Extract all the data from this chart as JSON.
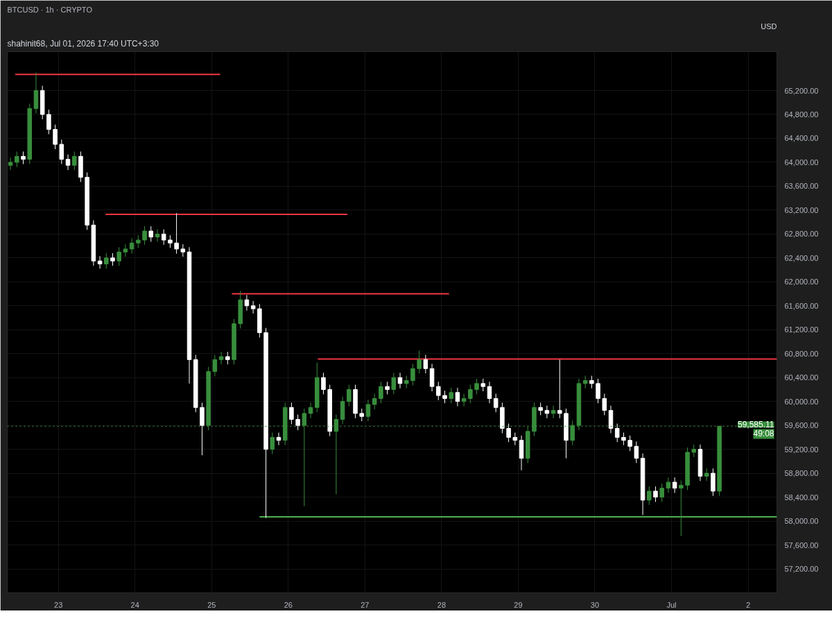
{
  "chart_data": {
    "type": "candlestick",
    "title": "BTCUSD · 1h · CRYPTO",
    "annotations": [
      "shahinit68, Jul 01, 2026 17:40 UTC+3:30",
      "USD",
      {
        "text": "49:08",
        "y": 59585.11
      }
    ],
    "x": [
      "2026-06-22T09:00",
      "2026-06-22T11:00",
      "2026-06-22T13:00",
      "2026-06-22T15:00",
      "2026-06-22T17:00",
      "2026-06-22T19:00",
      "2026-06-22T21:00",
      "2026-06-22T23:00",
      "2026-06-23T01:00",
      "2026-06-23T03:00",
      "2026-06-23T05:00",
      "2026-06-23T07:00",
      "2026-06-23T09:00",
      "2026-06-23T11:00",
      "2026-06-23T13:00",
      "2026-06-23T15:00",
      "2026-06-23T17:00",
      "2026-06-23T19:00",
      "2026-06-23T21:00",
      "2026-06-23T23:00",
      "2026-06-24T01:00",
      "2026-06-24T03:00",
      "2026-06-24T05:00",
      "2026-06-24T07:00",
      "2026-06-24T09:00",
      "2026-06-24T11:00",
      "2026-06-24T13:00",
      "2026-06-24T15:00",
      "2026-06-24T17:00",
      "2026-06-24T19:00",
      "2026-06-24T21:00",
      "2026-06-24T23:00",
      "2026-06-25T01:00",
      "2026-06-25T03:00",
      "2026-06-25T05:00",
      "2026-06-25T07:00",
      "2026-06-25T09:00",
      "2026-06-25T11:00",
      "2026-06-25T13:00",
      "2026-06-25T15:00",
      "2026-06-25T17:00",
      "2026-06-25T19:00",
      "2026-06-25T21:00",
      "2026-06-25T23:00",
      "2026-06-26T01:00",
      "2026-06-26T03:00",
      "2026-06-26T05:00",
      "2026-06-26T07:00",
      "2026-06-26T09:00",
      "2026-06-26T11:00",
      "2026-06-26T13:00",
      "2026-06-26T15:00",
      "2026-06-26T17:00",
      "2026-06-26T19:00",
      "2026-06-26T21:00",
      "2026-06-26T23:00",
      "2026-06-27T01:00",
      "2026-06-27T03:00",
      "2026-06-27T05:00",
      "2026-06-27T07:00",
      "2026-06-27T09:00",
      "2026-06-27T11:00",
      "2026-06-27T13:00",
      "2026-06-27T15:00",
      "2026-06-27T17:00",
      "2026-06-27T19:00",
      "2026-06-27T21:00",
      "2026-06-27T23:00",
      "2026-06-28T01:00",
      "2026-06-28T03:00",
      "2026-06-28T05:00",
      "2026-06-28T07:00",
      "2026-06-28T09:00",
      "2026-06-28T11:00",
      "2026-06-28T13:00",
      "2026-06-28T15:00",
      "2026-06-28T17:00",
      "2026-06-28T19:00",
      "2026-06-28T21:00",
      "2026-06-28T23:00",
      "2026-06-29T01:00",
      "2026-06-29T03:00",
      "2026-06-29T05:00",
      "2026-06-29T07:00",
      "2026-06-29T09:00",
      "2026-06-29T11:00",
      "2026-06-29T13:00",
      "2026-06-29T15:00",
      "2026-06-29T17:00",
      "2026-06-29T19:00",
      "2026-06-29T21:00",
      "2026-06-29T23:00",
      "2026-06-30T01:00",
      "2026-06-30T03:00",
      "2026-06-30T05:00",
      "2026-06-30T07:00",
      "2026-06-30T09:00",
      "2026-06-30T11:00",
      "2026-06-30T13:00",
      "2026-06-30T15:00",
      "2026-06-30T17:00",
      "2026-06-30T19:00",
      "2026-06-30T21:00",
      "2026-06-30T23:00",
      "2026-07-01T01:00",
      "2026-07-01T03:00",
      "2026-07-01T05:00",
      "2026-07-01T07:00",
      "2026-07-01T09:00",
      "2026-07-01T11:00",
      "2026-07-01T13:00",
      "2026-07-01T15:00"
    ],
    "ohlc": [
      [
        63950,
        64080,
        63870,
        64000
      ],
      [
        64000,
        64180,
        63920,
        64100
      ],
      [
        64100,
        64180,
        63970,
        64050
      ],
      [
        64050,
        64980,
        63970,
        64900
      ],
      [
        64900,
        65500,
        64820,
        65200
      ],
      [
        65200,
        65280,
        64720,
        64800
      ],
      [
        64800,
        64880,
        64470,
        64550
      ],
      [
        64550,
        64630,
        64220,
        64300
      ],
      [
        64300,
        64380,
        63970,
        64050
      ],
      [
        64050,
        64130,
        63870,
        63950
      ],
      [
        63950,
        64180,
        63870,
        64100
      ],
      [
        64100,
        64180,
        63670,
        63750
      ],
      [
        63750,
        63830,
        62870,
        62950
      ],
      [
        62950,
        63030,
        62270,
        62350
      ],
      [
        62350,
        62430,
        62220,
        62300
      ],
      [
        62300,
        62480,
        62220,
        62400
      ],
      [
        62400,
        62480,
        62270,
        62350
      ],
      [
        62350,
        62580,
        62270,
        62500
      ],
      [
        62500,
        62630,
        62420,
        62550
      ],
      [
        62550,
        62730,
        62470,
        62650
      ],
      [
        62650,
        62780,
        62570,
        62700
      ],
      [
        62700,
        62930,
        62620,
        62850
      ],
      [
        62850,
        62930,
        62670,
        62750
      ],
      [
        62750,
        62880,
        62670,
        62800
      ],
      [
        62800,
        62880,
        62620,
        62700
      ],
      [
        62700,
        62780,
        62570,
        62650
      ],
      [
        62650,
        63150,
        62470,
        62550
      ],
      [
        62550,
        62630,
        62420,
        62500
      ],
      [
        62500,
        62580,
        60300,
        60700
      ],
      [
        60700,
        60780,
        59820,
        59900
      ],
      [
        59900,
        59980,
        59100,
        59600
      ],
      [
        59600,
        60580,
        59520,
        60500
      ],
      [
        60500,
        60780,
        60420,
        60700
      ],
      [
        60700,
        60830,
        60620,
        60750
      ],
      [
        60750,
        60830,
        60620,
        60700
      ],
      [
        60700,
        61380,
        60620,
        61300
      ],
      [
        61300,
        61850,
        61220,
        61700
      ],
      [
        61700,
        61780,
        61520,
        61600
      ],
      [
        61600,
        61680,
        61470,
        61550
      ],
      [
        61550,
        61630,
        61070,
        61150
      ],
      [
        61150,
        61230,
        58050,
        59200
      ],
      [
        59200,
        59480,
        59120,
        59400
      ],
      [
        59400,
        59480,
        59270,
        59350
      ],
      [
        59350,
        59980,
        59270,
        59900
      ],
      [
        59900,
        59980,
        59620,
        59700
      ],
      [
        59700,
        59780,
        59520,
        59600
      ],
      [
        59600,
        59880,
        58250,
        59800
      ],
      [
        59800,
        59980,
        59720,
        59900
      ],
      [
        59900,
        60650,
        59820,
        60400
      ],
      [
        60400,
        60480,
        60120,
        60200
      ],
      [
        60200,
        60280,
        59420,
        59500
      ],
      [
        59500,
        59780,
        58450,
        59700
      ],
      [
        59700,
        60080,
        59620,
        60000
      ],
      [
        60000,
        60280,
        59920,
        60200
      ],
      [
        60200,
        60280,
        59720,
        59800
      ],
      [
        59800,
        59880,
        59670,
        59750
      ],
      [
        59750,
        60030,
        59670,
        59950
      ],
      [
        59950,
        60130,
        59870,
        60050
      ],
      [
        60050,
        60330,
        59970,
        60250
      ],
      [
        60250,
        60330,
        60120,
        60200
      ],
      [
        60200,
        60480,
        60120,
        60400
      ],
      [
        60400,
        60480,
        60220,
        60300
      ],
      [
        60300,
        60430,
        60220,
        60350
      ],
      [
        60350,
        60630,
        60270,
        60550
      ],
      [
        60550,
        60850,
        60470,
        60700
      ],
      [
        60700,
        60780,
        60470,
        60550
      ],
      [
        60550,
        60630,
        60170,
        60250
      ],
      [
        60250,
        60330,
        60020,
        60100
      ],
      [
        60100,
        60180,
        59970,
        60050
      ],
      [
        60050,
        60230,
        59970,
        60150
      ],
      [
        60150,
        60230,
        59920,
        60000
      ],
      [
        60000,
        60130,
        59920,
        60050
      ],
      [
        60050,
        60280,
        59970,
        60200
      ],
      [
        60200,
        60380,
        60120,
        60300
      ],
      [
        60300,
        60380,
        60170,
        60250
      ],
      [
        60250,
        60330,
        59970,
        60050
      ],
      [
        60050,
        60130,
        59820,
        59900
      ],
      [
        59900,
        59980,
        59470,
        59550
      ],
      [
        59550,
        59630,
        59320,
        59400
      ],
      [
        59400,
        59480,
        59270,
        59350
      ],
      [
        59350,
        59430,
        58850,
        59050
      ],
      [
        59050,
        59580,
        58970,
        59500
      ],
      [
        59500,
        59980,
        59420,
        59900
      ],
      [
        59900,
        59980,
        59770,
        59850
      ],
      [
        59850,
        59930,
        59720,
        59800
      ],
      [
        59800,
        59930,
        59720,
        59850
      ],
      [
        59850,
        60700,
        59720,
        59800
      ],
      [
        59800,
        59880,
        59050,
        59350
      ],
      [
        59350,
        59680,
        59270,
        59600
      ],
      [
        59600,
        60380,
        59520,
        60300
      ],
      [
        60300,
        60430,
        60220,
        60350
      ],
      [
        60350,
        60430,
        60220,
        60300
      ],
      [
        60300,
        60380,
        59970,
        60050
      ],
      [
        60050,
        60130,
        59770,
        59850
      ],
      [
        59850,
        59930,
        59470,
        59550
      ],
      [
        59550,
        59630,
        59320,
        59400
      ],
      [
        59400,
        59480,
        59270,
        59350
      ],
      [
        59350,
        59430,
        59170,
        59250
      ],
      [
        59250,
        59330,
        58970,
        59050
      ],
      [
        59050,
        59130,
        58100,
        58350
      ],
      [
        58350,
        58580,
        58270,
        58500
      ],
      [
        58500,
        58580,
        58320,
        58400
      ],
      [
        58400,
        58630,
        58320,
        58550
      ],
      [
        58550,
        58730,
        58470,
        58650
      ],
      [
        58650,
        58730,
        58470,
        58550
      ],
      [
        58550,
        58680,
        57750,
        58600
      ],
      [
        58600,
        59230,
        58520,
        59150
      ],
      [
        59150,
        59280,
        59070,
        59200
      ],
      [
        59200,
        59280,
        58670,
        58750
      ],
      [
        58750,
        58880,
        58670,
        58800
      ],
      [
        58800,
        58880,
        58420,
        58500
      ],
      [
        58500,
        59585.11,
        58420,
        59585.11
      ]
    ],
    "colors": [
      "#388e3c",
      "#388e3c",
      "#ffffff",
      "#388e3c",
      "#388e3c",
      "#ffffff",
      "#ffffff",
      "#ffffff",
      "#ffffff",
      "#ffffff",
      "#388e3c",
      "#ffffff",
      "#ffffff",
      "#ffffff",
      "#ffffff",
      "#388e3c",
      "#ffffff",
      "#388e3c",
      "#388e3c",
      "#388e3c",
      "#388e3c",
      "#388e3c",
      "#ffffff",
      "#388e3c",
      "#ffffff",
      "#ffffff",
      "#ffffff",
      "#ffffff",
      "#ffffff",
      "#ffffff",
      "#ffffff",
      "#388e3c",
      "#388e3c",
      "#388e3c",
      "#ffffff",
      "#388e3c",
      "#388e3c",
      "#ffffff",
      "#ffffff",
      "#ffffff",
      "#ffffff",
      "#388e3c",
      "#ffffff",
      "#388e3c",
      "#ffffff",
      "#ffffff",
      "#388e3c",
      "#388e3c",
      "#388e3c",
      "#ffffff",
      "#ffffff",
      "#388e3c",
      "#388e3c",
      "#388e3c",
      "#ffffff",
      "#ffffff",
      "#388e3c",
      "#388e3c",
      "#388e3c",
      "#ffffff",
      "#388e3c",
      "#ffffff",
      "#388e3c",
      "#388e3c",
      "#388e3c",
      "#ffffff",
      "#ffffff",
      "#ffffff",
      "#ffffff",
      "#388e3c",
      "#ffffff",
      "#388e3c",
      "#388e3c",
      "#388e3c",
      "#ffffff",
      "#ffffff",
      "#ffffff",
      "#ffffff",
      "#ffffff",
      "#ffffff",
      "#ffffff",
      "#388e3c",
      "#388e3c",
      "#ffffff",
      "#ffffff",
      "#388e3c",
      "#ffffff",
      "#ffffff",
      "#388e3c",
      "#388e3c",
      "#388e3c",
      "#ffffff",
      "#ffffff",
      "#ffffff",
      "#ffffff",
      "#ffffff",
      "#ffffff",
      "#ffffff",
      "#ffffff",
      "#ffffff",
      "#388e3c",
      "#ffffff",
      "#388e3c",
      "#388e3c",
      "#ffffff",
      "#388e3c",
      "#388e3c",
      "#388e3c",
      "#ffffff",
      "#388e3c",
      "#ffffff",
      "#388e3c"
    ],
    "series": [
      {
        "type": "line",
        "color": "#f23645",
        "x": [
          "2026-06-22T10:30",
          "2026-06-25T02:40"
        ],
        "values": [
          65470,
          65470
        ]
      },
      {
        "type": "line",
        "color": "#f23645",
        "x": [
          "2026-06-23T14:45",
          "2026-06-26T18:30"
        ],
        "values": [
          63130,
          63130
        ]
      },
      {
        "type": "line",
        "color": "#f23645",
        "x": [
          "2026-06-25T06:20",
          "2026-06-28T02:20"
        ],
        "values": [
          61800,
          61800
        ]
      },
      {
        "type": "line",
        "color": "#f23645",
        "x": [
          "2026-06-26T09:15",
          "2026-07-02T09:00"
        ],
        "values": [
          60710,
          60710
        ]
      },
      {
        "type": "line",
        "color": "#4caf50",
        "x": [
          "2026-06-25T15:00",
          "2026-07-02T09:00"
        ],
        "values": [
          58070,
          58070
        ]
      }
    ],
    "ref_lines": [
      {
        "axis": "y",
        "value": 59585.11,
        "label": "59,585.11",
        "color": "#388e3c",
        "line_style": "dotted"
      }
    ],
    "xlim": [
      "2026-06-22T08:00",
      "2026-07-02T09:00"
    ],
    "xticks": [
      {
        "value": "2026-06-23",
        "label": "23"
      },
      {
        "value": "2026-06-24",
        "label": "24"
      },
      {
        "value": "2026-06-25",
        "label": "25"
      },
      {
        "value": "2026-06-26",
        "label": "26"
      },
      {
        "value": "2026-06-27",
        "label": "27"
      },
      {
        "value": "2026-06-28",
        "label": "28"
      },
      {
        "value": "2026-06-29",
        "label": "29"
      },
      {
        "value": "2026-06-30",
        "label": "30"
      },
      {
        "value": "2026-07-01",
        "label": "Jul"
      },
      {
        "value": "2026-07-02",
        "label": "2"
      }
    ],
    "ylim": [
      56800,
      65850
    ],
    "yticks": [
      {
        "value": 57200,
        "label": "57,200.00"
      },
      {
        "value": 57600,
        "label": "57,600.00"
      },
      {
        "value": 58000,
        "label": "58,000.00"
      },
      {
        "value": 58400,
        "label": "58,400.00"
      },
      {
        "value": 58800,
        "label": "58,800.00"
      },
      {
        "value": 59200,
        "label": "59,200.00"
      },
      {
        "value": 59600,
        "label": "59,600.00"
      },
      {
        "value": 60000,
        "label": "60,000.00"
      },
      {
        "value": 60400,
        "label": "60,400.00"
      },
      {
        "value": 60800,
        "label": "60,800.00"
      },
      {
        "value": 61200,
        "label": "61,200.00"
      },
      {
        "value": 61600,
        "label": "61,600.00"
      },
      {
        "value": 62000,
        "label": "62,000.00"
      },
      {
        "value": 62400,
        "label": "62,400.00"
      },
      {
        "value": 62800,
        "label": "62,800.00"
      },
      {
        "value": 63200,
        "label": "63,200.00"
      },
      {
        "value": 63600,
        "label": "63,600.00"
      },
      {
        "value": 64000,
        "label": "64,000.00"
      },
      {
        "value": 64400,
        "label": "64,400.00"
      },
      {
        "value": 64800,
        "label": "64,800.00"
      },
      {
        "value": 65200,
        "label": "65,200.00"
      }
    ],
    "grid": true
  }
}
